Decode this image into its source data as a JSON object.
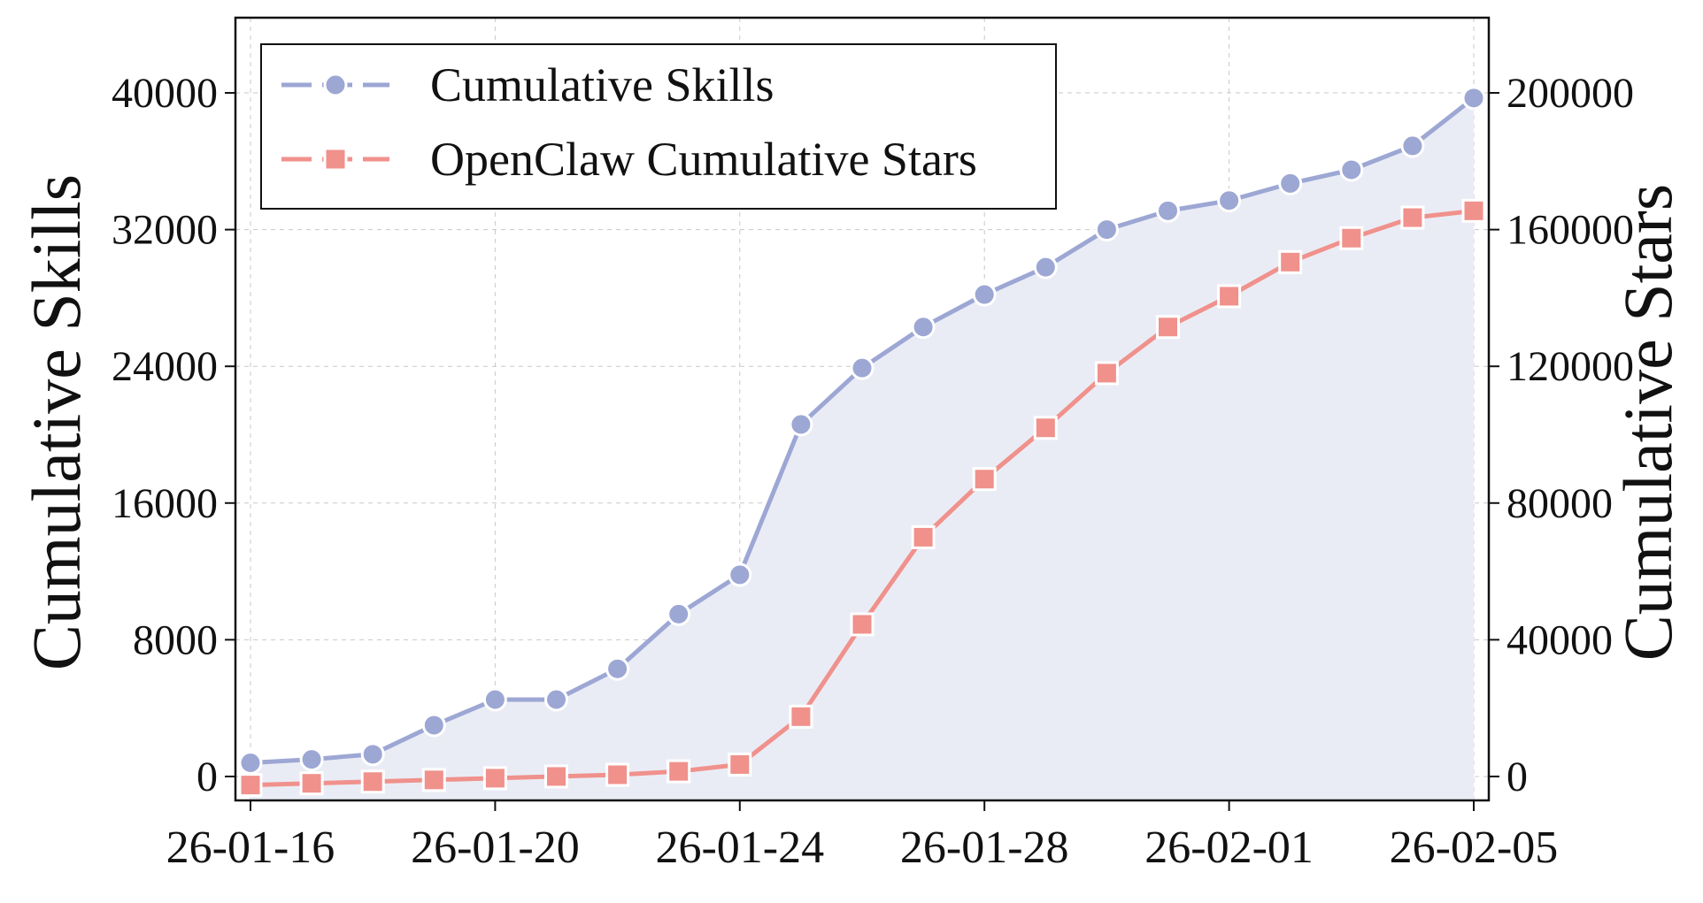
{
  "chart_data": {
    "type": "line",
    "x": [
      "26-01-16",
      "26-01-17",
      "26-01-18",
      "26-01-19",
      "26-01-20",
      "26-01-21",
      "26-01-22",
      "26-01-23",
      "26-01-24",
      "26-01-25",
      "26-01-26",
      "26-01-27",
      "26-01-28",
      "26-01-29",
      "26-01-30",
      "26-01-31",
      "26-02-01",
      "26-02-02",
      "26-02-03",
      "26-02-04",
      "26-02-05"
    ],
    "x_ticks": [
      "26-01-16",
      "26-01-20",
      "26-01-24",
      "26-01-28",
      "26-02-01",
      "26-02-05"
    ],
    "series": [
      {
        "name": "Cumulative Skills",
        "axis": "left",
        "marker": "circle",
        "color": "#9da7d4",
        "fill": "#eaecf5",
        "values": [
          800,
          1000,
          1300,
          3000,
          4500,
          4500,
          6300,
          9500,
          11800,
          20600,
          23900,
          26300,
          28200,
          29800,
          32000,
          33100,
          33700,
          34700,
          35500,
          36900,
          39700
        ]
      },
      {
        "name": "OpenClaw Cumulative Stars",
        "axis": "right",
        "marker": "square",
        "color": "#f0918c",
        "values": [
          -2500,
          -2000,
          -1500,
          -1000,
          -500,
          0,
          500,
          1500,
          3500,
          17500,
          44500,
          70000,
          87000,
          102000,
          118000,
          131500,
          140500,
          150500,
          157500,
          163500,
          165500
        ]
      }
    ],
    "ylabel": "Cumulative Skills",
    "y2label": "Cumulative Stars",
    "y_ticks": [
      0,
      8000,
      16000,
      24000,
      32000,
      40000
    ],
    "y2_ticks": [
      0,
      40000,
      80000,
      120000,
      160000,
      200000
    ],
    "ylim": [
      -1400,
      44400
    ],
    "y2lim": [
      -7000,
      222000
    ],
    "grid": true,
    "legend": "top-left"
  }
}
